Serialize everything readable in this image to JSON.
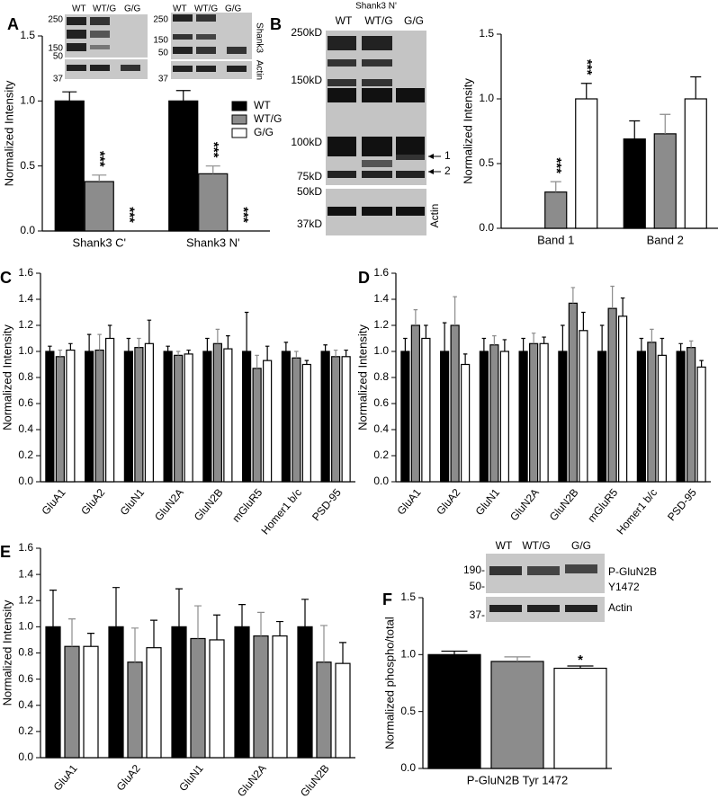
{
  "chart_data": [
    {
      "type": "bar",
      "panel": "A",
      "y_label": "Normalized Intensity",
      "legend": "upper right",
      "categories": [
        "Shank3 C'",
        "Shank3 N'"
      ],
      "series": [
        {
          "name": "WT",
          "color": "#000000",
          "values": [
            1.0,
            1.0
          ],
          "errors": [
            0.07,
            0.08
          ],
          "significance": [
            null,
            null
          ]
        },
        {
          "name": "WT/G",
          "color": "#8c8c8c",
          "values": [
            0.38,
            0.44
          ],
          "errors": [
            0.05,
            0.06
          ],
          "significance": [
            "***",
            "***"
          ]
        },
        {
          "name": "G/G",
          "color": "#ffffff",
          "values": [
            0,
            0
          ],
          "errors": [
            null,
            null
          ],
          "significance": [
            "***",
            "***"
          ]
        }
      ],
      "ylim": [
        0,
        1.5
      ],
      "yticks": [
        {
          "value": 0,
          "label": "0.0"
        },
        0.5,
        {
          "value": 1,
          "label": "1.0"
        },
        1.5
      ]
    },
    {
      "type": "bar",
      "panel": "B",
      "y_label": "Normalized Intensity",
      "categories": [
        "Band 1",
        "Band 2"
      ],
      "series": [
        {
          "color": "#000000",
          "values": [
            0,
            0.69
          ],
          "errors": [
            null,
            0.14
          ],
          "significance": [
            null,
            null
          ]
        },
        {
          "color": "#8c8c8c",
          "values": [
            0.28,
            0.73
          ],
          "errors": [
            0.08,
            0.15
          ],
          "significance": [
            "***",
            null
          ]
        },
        {
          "color": "#ffffff",
          "values": [
            1.0,
            1.0
          ],
          "errors": [
            0.12,
            0.17
          ],
          "significance": [
            "***",
            null
          ]
        }
      ],
      "ylim": [
        0,
        1.5
      ],
      "yticks": [
        {
          "value": 0,
          "label": "0.0"
        },
        0.5,
        {
          "value": 1,
          "label": "1.0"
        },
        1.5
      ]
    },
    {
      "type": "bar",
      "panel": "C",
      "y_label": "Normalized Intensity",
      "categories": [
        "GluA1",
        "GluA2",
        "GluN1",
        "GluN2A",
        "GluN2B",
        "mGluR5",
        "Homer1 b/c",
        "PSD-95"
      ],
      "series": [
        {
          "color": "#000000",
          "values": [
            1.0,
            1.0,
            1.0,
            1.0,
            1.0,
            1.0,
            1.0,
            1.0
          ],
          "errors": [
            0.04,
            0.13,
            0.1,
            0.04,
            0.1,
            0.3,
            0.07,
            0.05
          ]
        },
        {
          "color": "#8c8c8c",
          "values": [
            0.96,
            1.01,
            1.03,
            0.97,
            1.06,
            0.87,
            0.95,
            0.96
          ],
          "errors": [
            0.05,
            0.12,
            0.07,
            0.03,
            0.11,
            0.1,
            0.05,
            0.05
          ]
        },
        {
          "color": "#ffffff",
          "values": [
            1.01,
            1.1,
            1.06,
            0.98,
            1.02,
            0.93,
            0.9,
            0.96
          ],
          "errors": [
            0.05,
            0.1,
            0.18,
            0.03,
            0.1,
            0.11,
            0.03,
            0.05
          ]
        }
      ],
      "ylim": [
        0,
        1.6
      ],
      "yticks": [
        {
          "value": 0,
          "label": "0.0"
        },
        0.2,
        0.4,
        0.6,
        0.8,
        {
          "value": 1,
          "label": "1.0"
        },
        1.2,
        1.4,
        1.6
      ]
    },
    {
      "type": "bar",
      "panel": "D",
      "y_label": "Normalized Intensity",
      "categories": [
        "GluA1",
        "GluA2",
        "GluN1",
        "GluN2A",
        "GluN2B",
        "mGluR5",
        "Homer1 b/c",
        "PSD-95"
      ],
      "series": [
        {
          "color": "#000000",
          "values": [
            1.0,
            1.0,
            1.0,
            1.0,
            1.0,
            1.0,
            1.0,
            1.0
          ],
          "errors": [
            0.1,
            0.22,
            0.1,
            0.1,
            0.2,
            0.2,
            0.1,
            0.06
          ]
        },
        {
          "color": "#8c8c8c",
          "values": [
            1.2,
            1.2,
            1.05,
            1.06,
            1.37,
            1.33,
            1.07,
            1.03
          ],
          "errors": [
            0.12,
            0.22,
            0.07,
            0.08,
            0.12,
            0.17,
            0.1,
            0.05
          ]
        },
        {
          "color": "#ffffff",
          "values": [
            1.1,
            0.9,
            1.0,
            1.06,
            1.16,
            1.27,
            0.97,
            0.88
          ],
          "errors": [
            0.1,
            0.08,
            0.09,
            0.05,
            0.14,
            0.14,
            0.13,
            0.05
          ]
        }
      ],
      "ylim": [
        0,
        1.6
      ],
      "yticks": [
        {
          "value": 0,
          "label": "0.0"
        },
        0.2,
        0.4,
        0.6,
        0.8,
        {
          "value": 1,
          "label": "1.0"
        },
        1.2,
        1.4,
        1.6
      ]
    },
    {
      "type": "bar",
      "panel": "E",
      "y_label": "Normalized Intensity",
      "categories": [
        "GluA1",
        "GluA2",
        "GluN1",
        "GluN2A",
        "GluN2B"
      ],
      "series": [
        {
          "color": "#000000",
          "values": [
            1.0,
            1.0,
            1.0,
            1.0,
            1.0
          ],
          "errors": [
            0.28,
            0.3,
            0.29,
            0.17,
            0.21
          ]
        },
        {
          "color": "#8c8c8c",
          "values": [
            0.85,
            0.73,
            0.91,
            0.93,
            0.73
          ],
          "errors": [
            0.21,
            0.26,
            0.25,
            0.18,
            0.28
          ]
        },
        {
          "color": "#ffffff",
          "values": [
            0.85,
            0.84,
            0.9,
            0.93,
            0.72
          ],
          "errors": [
            0.1,
            0.21,
            0.19,
            0.11,
            0.16
          ]
        }
      ],
      "ylim": [
        0,
        1.6
      ],
      "yticks": [
        {
          "value": 0,
          "label": "0.0"
        },
        0.2,
        0.4,
        0.6,
        0.8,
        {
          "value": 1,
          "label": "1.0"
        },
        1.2,
        1.4,
        1.6
      ]
    },
    {
      "type": "bar",
      "panel": "F",
      "y_label": "Normalized phospho/total",
      "categories": [
        "P-GluN2B Tyr 1472"
      ],
      "series": [
        {
          "color": "#000000",
          "values": [
            1.0
          ],
          "errors": [
            0.03
          ],
          "significance": [
            null
          ]
        },
        {
          "color": "#8c8c8c",
          "values": [
            0.94
          ],
          "errors": [
            0.04
          ],
          "significance": [
            null
          ]
        },
        {
          "color": "#ffffff",
          "values": [
            0.88
          ],
          "errors": [
            0.02
          ],
          "significance": [
            "*"
          ]
        }
      ],
      "ylim": [
        0,
        1.5
      ],
      "yticks": [
        {
          "value": 0,
          "label": "0.0"
        },
        0.5,
        {
          "value": 1,
          "label": "1.0"
        },
        1.5
      ]
    }
  ],
  "blots": {
    "a_left": {
      "lanes": [
        "WT",
        "WT/G",
        "G/G"
      ],
      "markers": [
        "250",
        "150",
        "50",
        "37"
      ]
    },
    "a_right": {
      "lanes": [
        "WT",
        "WT/G",
        "G/G"
      ],
      "markers": [
        "250",
        "150",
        "50",
        "37"
      ],
      "labels": [
        "Shank3",
        "Actin"
      ]
    },
    "b": {
      "title": "Shank3 N'",
      "lanes": [
        "WT",
        "WT/G",
        "G/G"
      ],
      "markers": [
        "250kD",
        "150kD",
        "100kD",
        "75kD",
        "50kD",
        "37kD"
      ],
      "arrows": [
        "1",
        "2"
      ],
      "labels": [
        "Actin"
      ]
    },
    "f": {
      "lanes": [
        "WT",
        "WT/G",
        "G/G"
      ],
      "markers": [
        "190-",
        "50-",
        "37-"
      ],
      "labels": [
        "P-GluN2B",
        "Y1472",
        "Actin"
      ]
    }
  }
}
